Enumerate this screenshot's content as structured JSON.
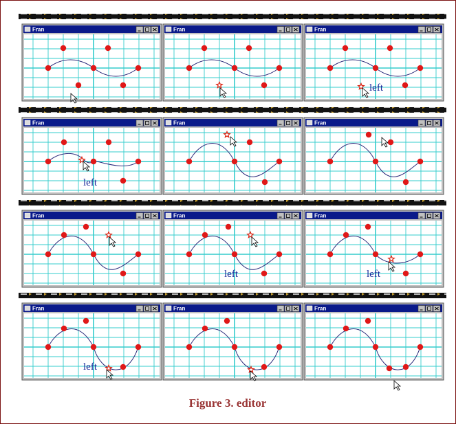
{
  "frames": [
    {
      "title": "Fran"
    },
    {
      "title": "Fran"
    },
    {
      "title": "Fran",
      "label": "left"
    },
    {
      "title": "Fran",
      "label": "left"
    },
    {
      "title": "Fran"
    },
    {
      "title": "Fran"
    },
    {
      "title": "Fran"
    },
    {
      "title": "Fran",
      "label": "left"
    },
    {
      "title": "Fran",
      "label": "left"
    },
    {
      "title": "Fran",
      "label": "left"
    },
    {
      "title": "Fran"
    },
    {
      "title": "Fran"
    }
  ],
  "caption": "Figure 3. editor"
}
